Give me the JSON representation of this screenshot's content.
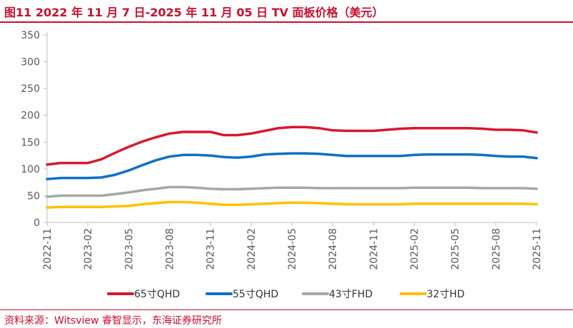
{
  "title": "图11  2022 年 11 月 7 日-2025 年 11 月 05 日 TV 面板价格（美元）",
  "source": "资料来源：Witsview 睿智显示，东海证券研究所",
  "chart_data": {
    "type": "line",
    "title": "图11  2022 年 11 月 7 日-2025 年 11 月 05 日 TV 面板价格（美元）",
    "xlabel": "",
    "ylabel": "",
    "ylim": [
      0,
      350
    ],
    "yticks": [
      0,
      50,
      100,
      150,
      200,
      250,
      300,
      350
    ],
    "grid": false,
    "legend": "bottom",
    "x": [
      "2022-11",
      "2022-12",
      "2023-01",
      "2023-02",
      "2023-03",
      "2023-04",
      "2023-05",
      "2023-06",
      "2023-07",
      "2023-08",
      "2023-09",
      "2023-10",
      "2023-11",
      "2023-12",
      "2024-01",
      "2024-02",
      "2024-03",
      "2024-04",
      "2024-05",
      "2024-06",
      "2024-07",
      "2024-08",
      "2024-09",
      "2024-10",
      "2024-11",
      "2024-12",
      "2025-01",
      "2025-02",
      "2025-03",
      "2025-04",
      "2025-05",
      "2025-06",
      "2025-07",
      "2025-08",
      "2025-09",
      "2025-10",
      "2025-11"
    ],
    "xticks": [
      "2022-11",
      "2023-02",
      "2023-05",
      "2023-08",
      "2023-11",
      "2024-02",
      "2024-05",
      "2024-08",
      "2024-11",
      "2025-02",
      "2025-05",
      "2025-08",
      "2025-11"
    ],
    "series": [
      {
        "name": "65寸QHD",
        "color": "#d7172f",
        "values": [
          108,
          111,
          111,
          111,
          118,
          130,
          141,
          151,
          159,
          166,
          169,
          169,
          169,
          163,
          163,
          166,
          171,
          176,
          178,
          178,
          176,
          172,
          171,
          171,
          171,
          173,
          175,
          176,
          176,
          176,
          176,
          176,
          175,
          173,
          173,
          172,
          168
        ]
      },
      {
        "name": "55寸QHD",
        "color": "#0f6fc6",
        "values": [
          81,
          83,
          83,
          83,
          84,
          89,
          97,
          107,
          116,
          123,
          126,
          126,
          125,
          122,
          121,
          123,
          127,
          128,
          129,
          129,
          128,
          126,
          124,
          124,
          124,
          124,
          124,
          126,
          127,
          127,
          127,
          127,
          126,
          124,
          123,
          123,
          120
        ]
      },
      {
        "name": "43寸FHD",
        "color": "#a6a6a6",
        "values": [
          48,
          50,
          50,
          50,
          50,
          53,
          56,
          60,
          63,
          66,
          66,
          65,
          63,
          62,
          62,
          63,
          64,
          65,
          65,
          65,
          64,
          64,
          64,
          64,
          64,
          64,
          64,
          65,
          65,
          65,
          65,
          65,
          64,
          64,
          64,
          64,
          63
        ]
      },
      {
        "name": "32寸HD",
        "color": "#ffc000",
        "values": [
          28,
          29,
          29,
          29,
          29,
          30,
          31,
          34,
          36,
          38,
          38,
          37,
          35,
          33,
          33,
          34,
          35,
          36,
          37,
          37,
          36,
          35,
          34,
          34,
          34,
          34,
          34,
          35,
          35,
          35,
          35,
          35,
          35,
          35,
          35,
          35,
          34
        ]
      }
    ]
  }
}
